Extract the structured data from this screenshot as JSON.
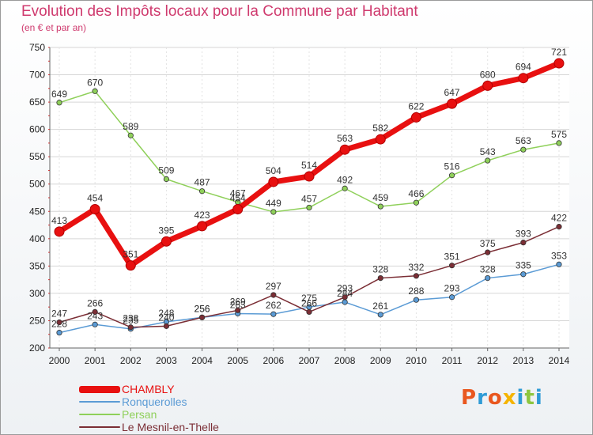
{
  "title": "Evolution des Impôts locaux pour la Commune par Habitant",
  "subtitle": "(en € et par an)",
  "logo": {
    "text": "Proxiti",
    "colors": [
      "#e9571f",
      "#2f9bd6",
      "#e9571f",
      "#f5b400",
      "#2f9bd6",
      "#8dc63f",
      "#2f9bd6"
    ]
  },
  "chart_data": {
    "type": "line",
    "x": [
      2000,
      2001,
      2002,
      2003,
      2004,
      2005,
      2006,
      2007,
      2008,
      2009,
      2010,
      2011,
      2012,
      2013,
      2014
    ],
    "ylim": [
      200,
      750
    ],
    "yticks": [
      200,
      250,
      300,
      350,
      400,
      450,
      500,
      550,
      600,
      650,
      700,
      750
    ],
    "grid": "horizontal",
    "legend": "bottom-left",
    "series": [
      {
        "name": "Ronquerolles",
        "color": "#5b9bd5",
        "values": [
          228,
          243,
          235,
          248,
          256,
          263,
          262,
          275,
          284,
          261,
          288,
          293,
          328,
          335,
          353
        ]
      },
      {
        "name": "Persan",
        "color": "#8fd05a",
        "values": [
          649,
          670,
          589,
          509,
          487,
          467,
          449,
          457,
          492,
          459,
          466,
          516,
          543,
          563,
          575
        ]
      },
      {
        "name": "Le Mesnil-en-Thelle",
        "color": "#7b2e35",
        "values": [
          247,
          266,
          238,
          240,
          256,
          269,
          297,
          266,
          293,
          328,
          332,
          351,
          375,
          393,
          422
        ]
      },
      {
        "name": "CHAMBLY",
        "color": "#e81010",
        "values": [
          413,
          454,
          351,
          395,
          423,
          454,
          504,
          514,
          563,
          582,
          622,
          647,
          680,
          694,
          721
        ]
      }
    ]
  }
}
